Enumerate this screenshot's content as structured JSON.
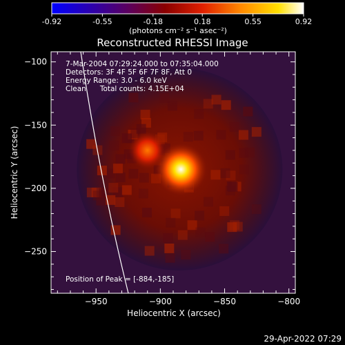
{
  "colorbar": {
    "ticks": [
      "-0.92",
      "-0.55",
      "-0.18",
      "0.18",
      "0.55",
      "0.92"
    ],
    "tick_values": [
      -0.92,
      -0.55,
      -0.18,
      0.18,
      0.55,
      0.92
    ],
    "range": [
      -0.92,
      0.92
    ],
    "colors": [
      "#0000ff",
      "#2a00b0",
      "#5a0060",
      "#8a0000",
      "#e02000",
      "#ff8800",
      "#ffe000",
      "#ffffff"
    ],
    "units": "(photons cm⁻² s⁻¹ asec⁻²)"
  },
  "chart_data": {
    "type": "heatmap",
    "title": "Reconstructed RHESSI Image",
    "xlabel": "Heliocentric X (arcsec)",
    "ylabel": "Heliocentric Y (arcsec)",
    "xlim": [
      -985,
      -795
    ],
    "ylim": [
      -283,
      -92
    ],
    "x_ticks": [
      -950,
      -900,
      -850,
      -800
    ],
    "y_ticks": [
      -100,
      -150,
      -200,
      -250
    ],
    "x_tick_labels": [
      "−950",
      "−900",
      "−850",
      "−800"
    ],
    "y_tick_labels": [
      "−100",
      "−150",
      "−200",
      "−250"
    ],
    "grid": false,
    "sources": [
      {
        "x": -884,
        "y": -185,
        "peak_relative": 1.0
      },
      {
        "x": -910,
        "y": -170,
        "peak_relative": 0.55
      }
    ],
    "disk_center": [
      -885,
      -185
    ],
    "disk_radius_arcsec": 80
  },
  "annotations": {
    "time": "7-Mar-2004 07:29:24.000 to 07:35:04.000",
    "detectors": "Detectors: 3F 4F 5F 6F 7F 8F, Att 0",
    "energy": "Energy Range: 3.0 - 6.0 keV",
    "clean": "Clean      Total counts: 4.15E+04",
    "peak": "Position of Peak = [-884,-185]"
  },
  "footer": {
    "timestamp": "29-Apr-2022 07:29"
  }
}
